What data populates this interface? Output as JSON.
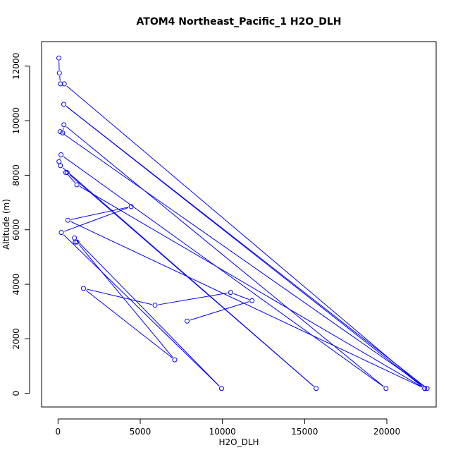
{
  "chart_data": {
    "type": "line",
    "title": "ATOM4 Northeast_Pacific_1 H2O_DLH",
    "xlabel": "H2O_DLH",
    "ylabel": "Altitude (m)",
    "xlim": [
      -1000,
      23000
    ],
    "ylim": [
      -500,
      12900
    ],
    "x_ticks": [
      0,
      5000,
      10000,
      15000,
      20000
    ],
    "y_ticks": [
      0,
      2000,
      4000,
      6000,
      8000,
      10000,
      12000
    ],
    "grid": false,
    "legend": "none",
    "marker": "open-circle",
    "color": "#0000ff",
    "points": [
      [
        50,
        12300
      ],
      [
        80,
        11750
      ],
      [
        150,
        11350
      ],
      [
        380,
        11350
      ],
      [
        22300,
        180
      ],
      [
        350,
        10600
      ],
      [
        22450,
        180
      ],
      [
        130,
        9600
      ],
      [
        280,
        9550
      ],
      [
        360,
        9850
      ],
      [
        19950,
        180
      ],
      [
        180,
        8750
      ],
      [
        60,
        8500
      ],
      [
        150,
        8350
      ],
      [
        15700,
        180
      ],
      [
        550,
        8100
      ],
      [
        470,
        8100
      ],
      [
        1150,
        7650
      ],
      [
        22300,
        180
      ],
      [
        600,
        6350
      ],
      [
        4450,
        6850
      ],
      [
        200,
        5900
      ],
      [
        9950,
        180
      ],
      [
        1000,
        5700
      ],
      [
        1050,
        5550
      ],
      [
        1150,
        5550
      ],
      [
        7100,
        1230
      ],
      [
        1550,
        3850
      ],
      [
        5900,
        3230
      ],
      [
        10500,
        3700
      ],
      [
        11800,
        3400
      ],
      [
        7850,
        2650
      ]
    ]
  }
}
